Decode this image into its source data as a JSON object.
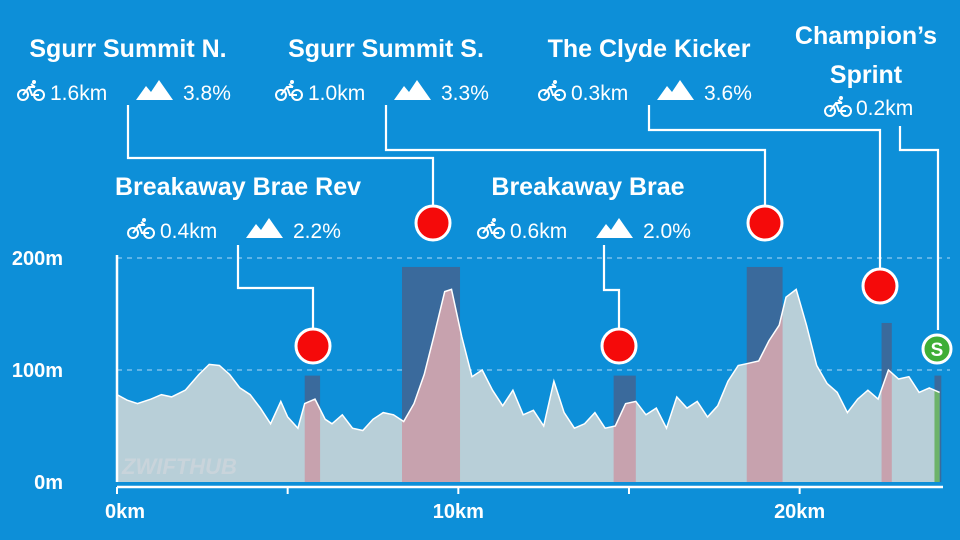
{
  "chart_data": {
    "type": "area",
    "xlabel_units": "km",
    "ylabel_units": "m",
    "xlim": [
      0,
      24.2
    ],
    "ylim": [
      0,
      200
    ],
    "x_ticks": [
      {
        "value": 0,
        "label": "0km"
      },
      {
        "value": 10,
        "label": "10km"
      },
      {
        "value": 20,
        "label": "20km"
      }
    ],
    "y_ticks": [
      {
        "value": 0,
        "label": "0m"
      },
      {
        "value": 100,
        "label": "100m"
      },
      {
        "value": 200,
        "label": "200m"
      }
    ],
    "grid": "dashed horizontal at 100m and 200m",
    "elevation": {
      "x": [
        0,
        0.3,
        0.6,
        1.0,
        1.3,
        1.6,
        2.0,
        2.4,
        2.7,
        3.0,
        3.3,
        3.6,
        3.9,
        4.2,
        4.5,
        4.8,
        5.0,
        5.3,
        5.5,
        5.8,
        6.1,
        6.3,
        6.6,
        6.9,
        7.2,
        7.5,
        7.8,
        8.1,
        8.4,
        8.7,
        9.0,
        9.3,
        9.6,
        9.8,
        10.1,
        10.4,
        10.7,
        11.0,
        11.3,
        11.6,
        11.9,
        12.2,
        12.5,
        12.8,
        13.1,
        13.4,
        13.7,
        14.0,
        14.3,
        14.6,
        14.9,
        15.2,
        15.5,
        15.8,
        16.1,
        16.4,
        16.7,
        17.0,
        17.3,
        17.6,
        17.9,
        18.2,
        18.5,
        18.8,
        19.1,
        19.4,
        19.6,
        19.9,
        20.2,
        20.5,
        20.8,
        21.1,
        21.4,
        21.7,
        22.0,
        22.3,
        22.6,
        22.9,
        23.2,
        23.5,
        23.8,
        24.1
      ],
      "y": [
        78,
        73,
        70,
        74,
        78,
        76,
        82,
        96,
        105,
        104,
        96,
        84,
        78,
        66,
        52,
        72,
        58,
        48,
        70,
        74,
        56,
        52,
        60,
        48,
        46,
        56,
        62,
        60,
        54,
        70,
        96,
        132,
        170,
        172,
        130,
        94,
        100,
        82,
        68,
        82,
        60,
        64,
        50,
        90,
        62,
        48,
        52,
        62,
        48,
        50,
        70,
        72,
        60,
        66,
        48,
        76,
        66,
        72,
        58,
        68,
        90,
        104,
        106,
        108,
        126,
        140,
        165,
        172,
        140,
        104,
        88,
        80,
        62,
        74,
        82,
        74,
        100,
        92,
        94,
        80,
        84,
        80
      ]
    },
    "segments": [
      {
        "name": "Sgurr Summit N.",
        "distance": "1.6km",
        "gradient": "3.8%",
        "start_km": 8.35,
        "end_km": 10.05,
        "top_m": 192
      },
      {
        "name": "Sgurr Summit S.",
        "distance": "1.0km",
        "gradient": "3.3%",
        "start_km": 5.5,
        "end_km": 5.95,
        "top_m": 95
      },
      {
        "name": "The Clyde Kicker",
        "distance": "0.3km",
        "gradient": "3.6%",
        "start_km": 18.45,
        "end_km": 19.5,
        "top_m": 192
      },
      {
        "name": "Champion’s Sprint",
        "distance": "0.2km",
        "gradient": "",
        "start_km": 23.95,
        "end_km": 24.15,
        "top_m": 95
      },
      {
        "name": "Breakaway Brae Rev",
        "distance": "0.4km",
        "gradient": "2.2%",
        "start_km": 14.55,
        "end_km": 15.2,
        "top_m": 95
      },
      {
        "name": "Breakaway Brae",
        "distance": "0.6km",
        "gradient": "2.0%",
        "start_km": 22.4,
        "end_km": 22.7,
        "top_m": 142
      }
    ],
    "sprint_marker": "S"
  },
  "watermark": "ZWIFTHUB",
  "colors": {
    "background": "#0d8fd8",
    "profile_fill": "#b8cfd8",
    "profile_line": "#ffffff",
    "climb_bar": "#3a6a9c",
    "climb_fill": "#c7a2ae",
    "sprint_fill": "#6db36a",
    "marker_red": "#f50a0a",
    "marker_green": "#3fae36"
  },
  "icons": {
    "distance": "bike-icon",
    "gradient": "mountain-icon"
  }
}
